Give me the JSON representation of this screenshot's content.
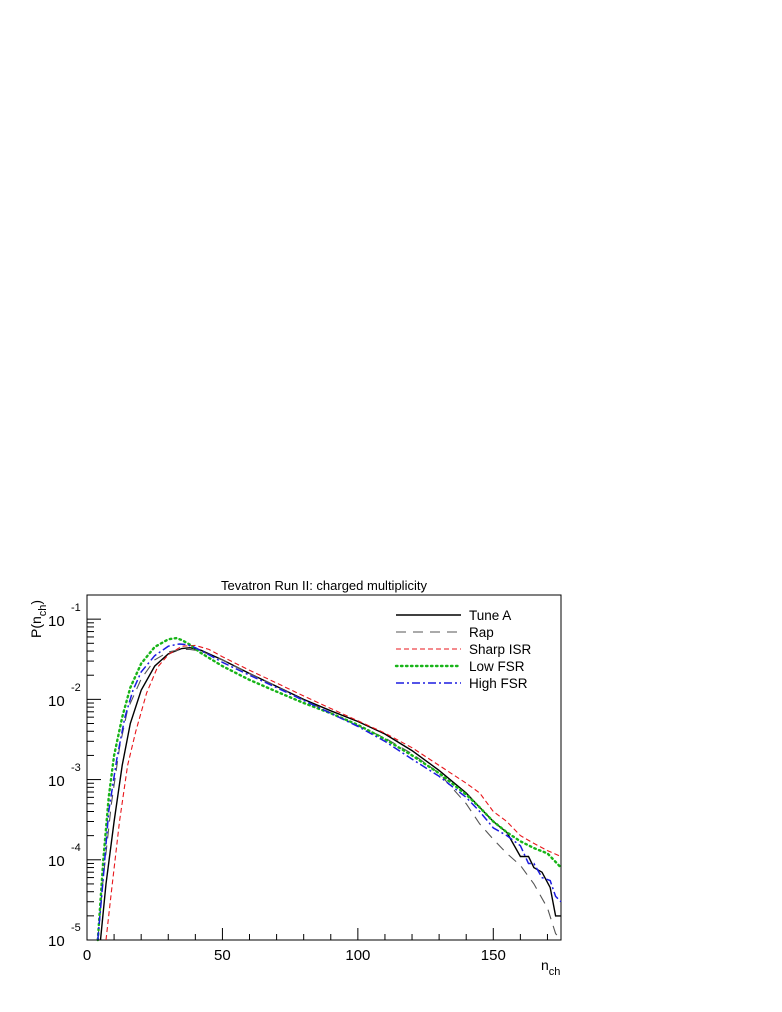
{
  "chart_data": {
    "type": "line",
    "title": "Tevatron Run II: charged multiplicity",
    "xlabel": {
      "main": "n",
      "sub": "ch"
    },
    "ylabel": {
      "pre": "P(n",
      "sub": "ch",
      "post": ")"
    },
    "xlim": [
      0,
      175
    ],
    "ylim": [
      1e-05,
      0.2
    ],
    "yscale": "log",
    "x_ticks": [
      "0",
      "50",
      "100",
      "150"
    ],
    "y_ticks": [
      {
        "base": "10",
        "exp": "-5"
      },
      {
        "base": "10",
        "exp": "-4"
      },
      {
        "base": "10",
        "exp": "-3"
      },
      {
        "base": "10",
        "exp": "-2"
      },
      {
        "base": "10",
        "exp": "-1"
      }
    ],
    "legend_position": "top-right",
    "series": [
      {
        "name": "Tune A",
        "color": "#000000",
        "dash": "solid",
        "x": [
          5,
          7,
          10,
          13,
          16,
          20,
          25,
          30,
          35,
          38,
          42,
          50,
          60,
          70,
          80,
          90,
          100,
          110,
          120,
          130,
          140,
          145,
          150,
          155,
          160,
          163,
          165,
          168,
          171,
          173,
          175
        ],
        "y": [
          1e-05,
          5e-05,
          0.0003,
          0.0015,
          0.005,
          0.013,
          0.026,
          0.037,
          0.043,
          0.044,
          0.041,
          0.031,
          0.021,
          0.0145,
          0.01,
          0.0072,
          0.0053,
          0.0037,
          0.0023,
          0.0013,
          0.00068,
          0.00045,
          0.0003,
          0.00022,
          0.00011,
          0.00011,
          8e-05,
          7e-05,
          4.5e-05,
          2e-05,
          2e-05
        ]
      },
      {
        "name": "Rap",
        "color": "#555555",
        "dash": "long",
        "x": [
          4,
          6,
          9,
          12,
          15,
          20,
          25,
          30,
          35,
          38,
          42,
          50,
          60,
          70,
          80,
          90,
          100,
          110,
          120,
          130,
          140,
          145,
          150,
          155,
          160,
          165,
          170,
          173,
          175
        ],
        "y": [
          1e-05,
          6e-05,
          0.0005,
          0.0025,
          0.0075,
          0.018,
          0.031,
          0.039,
          0.042,
          0.042,
          0.04,
          0.031,
          0.021,
          0.0145,
          0.0098,
          0.0068,
          0.0047,
          0.0033,
          0.0021,
          0.0012,
          0.0005,
          0.00028,
          0.00018,
          0.00012,
          8.5e-05,
          5e-05,
          2.5e-05,
          1.2e-05,
          1e-05
        ]
      },
      {
        "name": "Sharp ISR",
        "color": "#e8161b",
        "dash": "medium",
        "x": [
          7,
          9,
          12,
          15,
          18,
          22,
          26,
          30,
          35,
          40,
          45,
          50,
          60,
          70,
          80,
          90,
          100,
          110,
          120,
          130,
          140,
          145,
          150,
          155,
          160,
          165,
          170,
          175
        ],
        "y": [
          1e-05,
          4e-05,
          0.0003,
          0.0015,
          0.004,
          0.012,
          0.025,
          0.036,
          0.046,
          0.047,
          0.042,
          0.034,
          0.023,
          0.016,
          0.011,
          0.0077,
          0.0054,
          0.0038,
          0.0025,
          0.0015,
          0.0009,
          0.00068,
          0.0004,
          0.0003,
          0.0002,
          0.00016,
          0.00013,
          0.00011
        ]
      },
      {
        "name": "Low FSR",
        "color": "#18b418",
        "dash": "dotted",
        "x": [
          4,
          6,
          8,
          10,
          13,
          16,
          20,
          25,
          30,
          33,
          35,
          38,
          42,
          50,
          60,
          70,
          80,
          90,
          100,
          110,
          120,
          130,
          140,
          145,
          150,
          155,
          160,
          165,
          170,
          175
        ],
        "y": [
          1e-05,
          0.0001,
          0.0006,
          0.002,
          0.006,
          0.014,
          0.028,
          0.045,
          0.056,
          0.058,
          0.055,
          0.048,
          0.038,
          0.026,
          0.0175,
          0.0125,
          0.009,
          0.0067,
          0.0048,
          0.0032,
          0.002,
          0.0012,
          0.00065,
          0.00045,
          0.0003,
          0.00022,
          0.00017,
          0.00014,
          0.00012,
          8e-05
        ]
      },
      {
        "name": "High FSR",
        "color": "#1c1ce0",
        "dash": "dashdot",
        "x": [
          4,
          6,
          8,
          11,
          14,
          17,
          20,
          25,
          30,
          34,
          37,
          40,
          45,
          50,
          60,
          70,
          80,
          90,
          100,
          110,
          120,
          130,
          140,
          145,
          150,
          155,
          160,
          163,
          165,
          168,
          171,
          173,
          175
        ],
        "y": [
          1e-05,
          6e-05,
          0.0004,
          0.0018,
          0.006,
          0.013,
          0.022,
          0.035,
          0.046,
          0.049,
          0.048,
          0.044,
          0.036,
          0.029,
          0.02,
          0.014,
          0.0097,
          0.0067,
          0.0046,
          0.003,
          0.0018,
          0.0011,
          0.0006,
          0.0004,
          0.00025,
          0.0002,
          0.00015,
          9e-05,
          9e-05,
          6e-05,
          5.5e-05,
          3.5e-05,
          3e-05
        ]
      }
    ]
  }
}
